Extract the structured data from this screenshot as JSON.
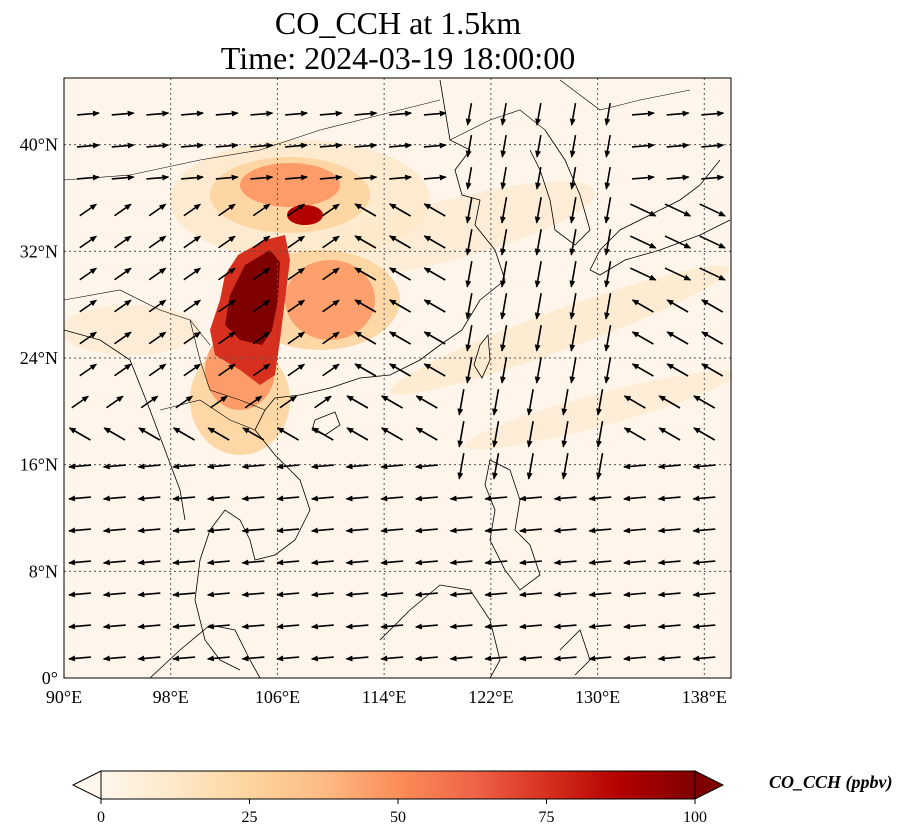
{
  "title": {
    "line1": "CO_CCH at 1.5km",
    "line2": "Time: 2024-03-19 18:00:00"
  },
  "map": {
    "projection": "PlateCarree",
    "lon_range": [
      90,
      140
    ],
    "lat_range": [
      0,
      45
    ],
    "gridlines": "dotted",
    "x_ticks": [
      "90°E",
      "98°E",
      "106°E",
      "114°E",
      "122°E",
      "130°E",
      "138°E"
    ],
    "y_ticks": [
      "0°",
      "8°N",
      "16°N",
      "24°N",
      "32°N",
      "40°N"
    ],
    "background_color": "#fff5eb",
    "high_region_color": "#7f0000",
    "vector_color": "#000000",
    "vectors_shown": true,
    "coastlines_shown": true
  },
  "colorbar": {
    "label": "CO_CCH (ppbv)",
    "ticks": [
      "0",
      "25",
      "50",
      "75",
      "100"
    ],
    "min": 0,
    "max": 100,
    "colormap": "OrRd",
    "colors": [
      "#fff7ec",
      "#fee8c8",
      "#fdd49e",
      "#fdbb84",
      "#fc8d59",
      "#ef6548",
      "#d7301f",
      "#b30000",
      "#7f0000"
    ],
    "extend": "both"
  }
}
